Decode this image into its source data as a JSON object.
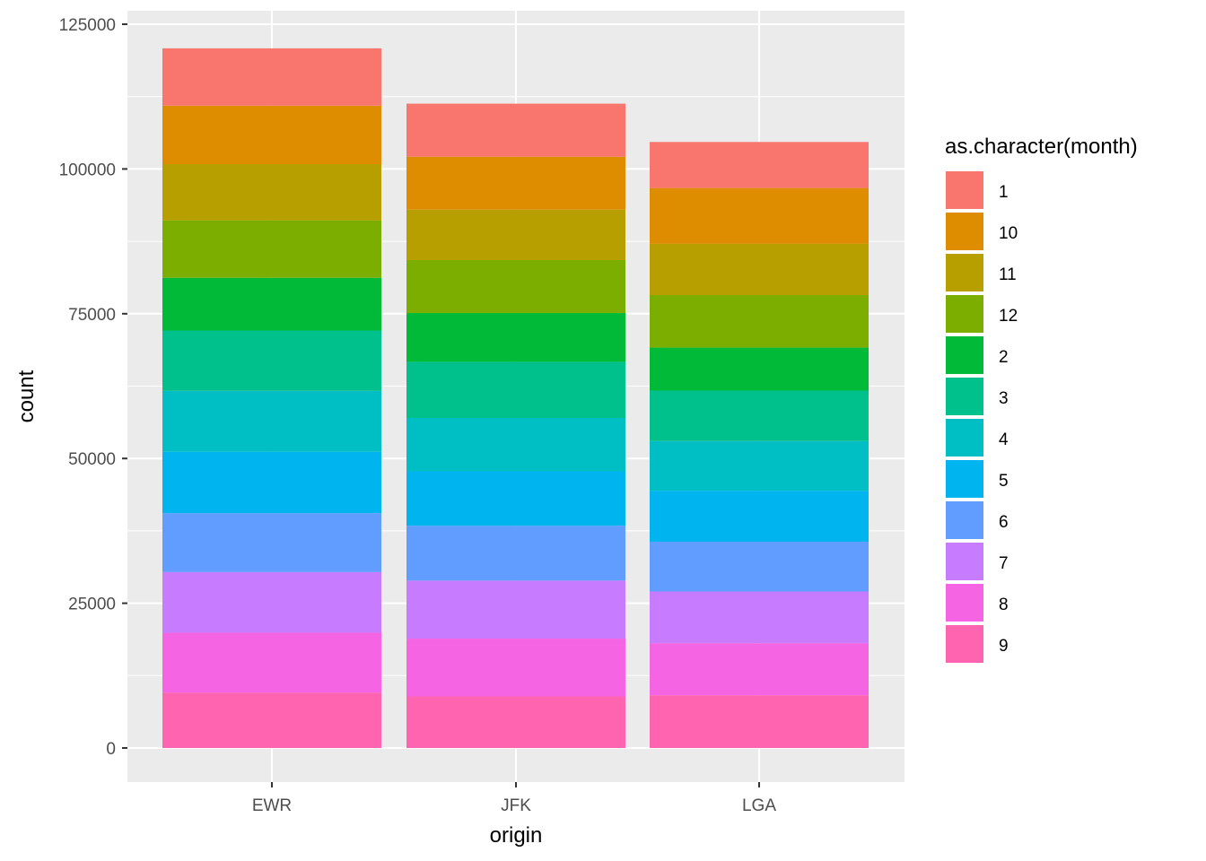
{
  "chart_data": {
    "type": "bar",
    "stacked": true,
    "categories": [
      "EWR",
      "JFK",
      "LGA"
    ],
    "xlabel": "origin",
    "ylabel": "count",
    "ylim": [
      0,
      125000
    ],
    "y_ticks": [
      0,
      25000,
      50000,
      75000,
      100000,
      125000
    ],
    "y_tick_labels": [
      "0",
      "25000",
      "50000",
      "75000",
      "100000",
      "125000"
    ],
    "grid": true,
    "legend": {
      "title": "as.character(month)",
      "position": "right"
    },
    "series": [
      {
        "name": "1",
        "color": "#F8766D",
        "values": [
          9893,
          9161,
          7950
        ]
      },
      {
        "name": "10",
        "color": "#DE8C00",
        "values": [
          10104,
          9143,
          9642
        ]
      },
      {
        "name": "11",
        "color": "#B79F00",
        "values": [
          9707,
          8710,
          8851
        ]
      },
      {
        "name": "12",
        "color": "#7CAE00",
        "values": [
          9922,
          9146,
          9067
        ]
      },
      {
        "name": "2",
        "color": "#00BA38",
        "values": [
          9107,
          8421,
          7423
        ]
      },
      {
        "name": "3",
        "color": "#00C08B",
        "values": [
          10420,
          9697,
          8717
        ]
      },
      {
        "name": "4",
        "color": "#00BFC4",
        "values": [
          10531,
          9218,
          8581
        ]
      },
      {
        "name": "5",
        "color": "#00B4F0",
        "values": [
          10592,
          9397,
          8807
        ]
      },
      {
        "name": "6",
        "color": "#619CFF",
        "values": [
          10175,
          9472,
          8596
        ]
      },
      {
        "name": "7",
        "color": "#C77CFF",
        "values": [
          10475,
          10023,
          8927
        ]
      },
      {
        "name": "8",
        "color": "#F564E3",
        "values": [
          10359,
          9983,
          8985
        ]
      },
      {
        "name": "9",
        "color": "#FF64B0",
        "values": [
          9550,
          8908,
          9116
        ]
      }
    ]
  }
}
